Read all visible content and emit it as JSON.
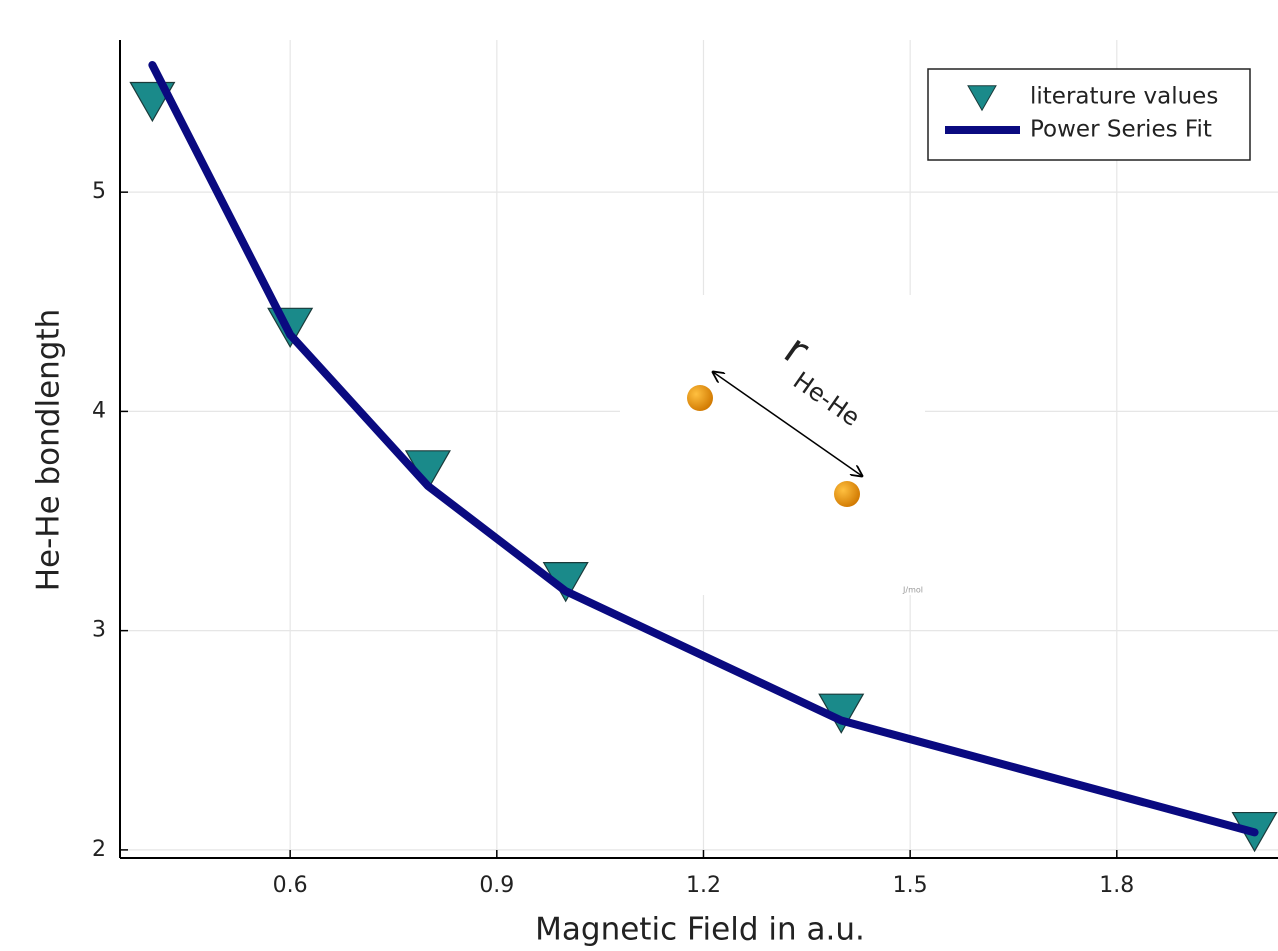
{
  "chart_data": {
    "type": "line",
    "xlabel": "Magnetic Field in a.u.",
    "ylabel": "He-He bondlength",
    "x": [
      0.4,
      0.6,
      0.8,
      1.0,
      1.4,
      2.0
    ],
    "series": [
      {
        "name": "literature values",
        "mode": "markers",
        "color": "#1a8a8a",
        "values": [
          5.42,
          4.39,
          3.74,
          3.23,
          2.63,
          2.09
        ]
      },
      {
        "name": "Power Series Fit",
        "mode": "line",
        "color": "#0a0a80",
        "values": [
          5.58,
          4.35,
          3.66,
          3.18,
          2.59,
          2.08
        ]
      }
    ],
    "xlim": [
      0.353,
      2.034
    ],
    "ylim": [
      1.963,
      5.694
    ],
    "xticks": [
      0.6,
      0.9,
      1.2,
      1.5,
      1.8
    ],
    "yticks": [
      2,
      3,
      4,
      5
    ],
    "grid": true,
    "legend": "top-right",
    "annotations": [
      "r",
      "He-He",
      "J/mol"
    ]
  }
}
